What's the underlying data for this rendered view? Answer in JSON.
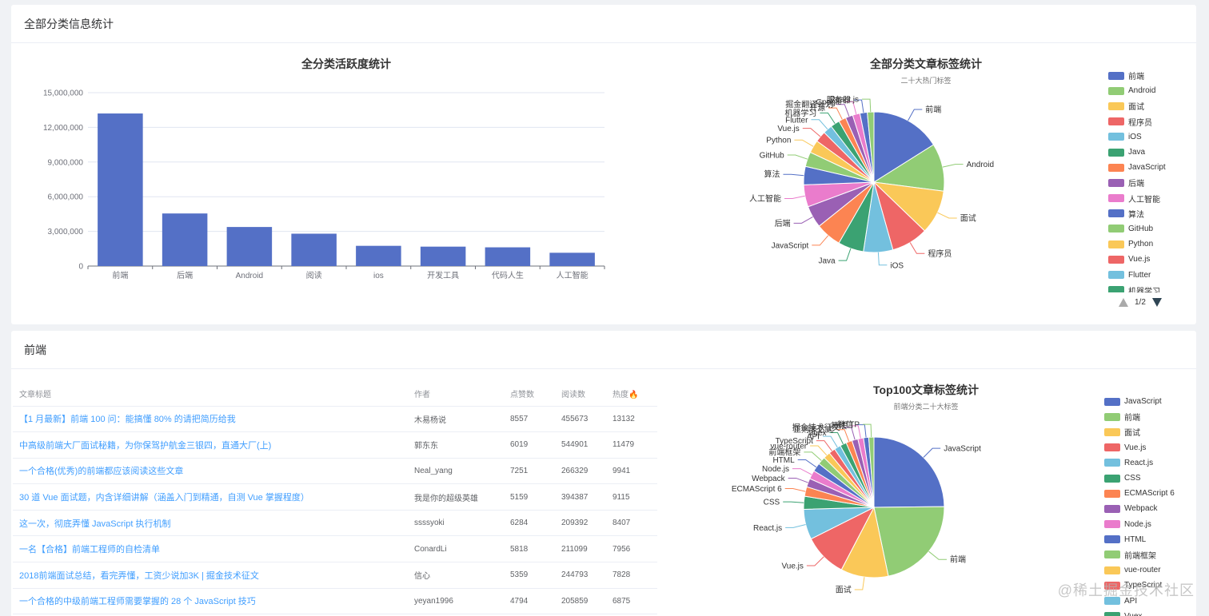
{
  "section1": {
    "title": "全部分类信息统计"
  },
  "section2": {
    "title": "前端"
  },
  "bar_chart": {
    "title": "全分类活跃度统计"
  },
  "pie1": {
    "title": "全部分类文章标签统计",
    "subtitle": "二十大热门标签",
    "legend_page": "1/2",
    "legend": [
      "前端",
      "Android",
      "面试",
      "程序员",
      "iOS",
      "Java",
      "JavaScript",
      "后端",
      "人工智能",
      "算法",
      "GitHub",
      "Python",
      "Vue.js",
      "Flutter",
      "机器学习"
    ]
  },
  "pie2": {
    "title": "Top100文章标签统计",
    "subtitle": "前端分类二十大标签",
    "legend": [
      "JavaScript",
      "前端",
      "面试",
      "Vue.js",
      "React.js",
      "CSS",
      "ECMAScript 6",
      "Webpack",
      "Node.js",
      "HTML",
      "前端框架",
      "vue-router",
      "TypeScript",
      "API",
      "Vuex"
    ]
  },
  "table": {
    "headers": [
      "文章标题",
      "作者",
      "点赞数",
      "阅读数",
      "热度🔥"
    ],
    "rows": [
      [
        "【1 月最新】前端 100 问：能搞懂 80% 的请把简历给我",
        "木易杨说",
        "8557",
        "455673",
        "13132"
      ],
      [
        "中高级前端大厂面试秘籍，为你保驾护航金三银四，直通大厂(上)",
        "郭东东",
        "6019",
        "544901",
        "11479"
      ],
      [
        "一个合格(优秀)的前端都应该阅读这些文章",
        "Neal_yang",
        "7251",
        "266329",
        "9941"
      ],
      [
        "30 道 Vue 面试题，内含详细讲解（涵盖入门到精通，自测 Vue 掌握程度）",
        "我是你的超级英雄",
        "5159",
        "394387",
        "9115"
      ],
      [
        "这一次，彻底弄懂 JavaScript 执行机制",
        "ssssyoki",
        "6284",
        "209392",
        "8407"
      ],
      [
        "一名【合格】前端工程师的自检清单",
        "ConardLi",
        "5818",
        "211099",
        "7956"
      ],
      [
        "2018前端面试总结，看完弄懂，工资少说加3K | 掘金技术征文",
        "信心",
        "5359",
        "244793",
        "7828"
      ],
      [
        "一个合格的中级前端工程师需要掌握的 28 个 JavaScript 技巧",
        "yeyan1996",
        "4794",
        "205859",
        "6875"
      ]
    ]
  },
  "watermark": "@稀土掘金技术社区",
  "palette": [
    "#5470c6",
    "#91cc75",
    "#fac858",
    "#ee6666",
    "#73c0de",
    "#3ba272",
    "#fc8452",
    "#9a60b4",
    "#ea7ccc"
  ],
  "chart_data": [
    {
      "type": "bar",
      "title": "全分类活跃度统计",
      "categories": [
        "前端",
        "后端",
        "Android",
        "阅读",
        "ios",
        "开发工具",
        "代码人生",
        "人工智能"
      ],
      "values": [
        13200000,
        4550000,
        3380000,
        2800000,
        1750000,
        1680000,
        1620000,
        1150000
      ],
      "ylim": [
        0,
        15000000
      ],
      "yticks": [
        "0",
        "3,000,000",
        "6,000,000",
        "9,000,000",
        "12,000,000",
        "15,000,000"
      ],
      "color": "#5470c6",
      "grid": true
    },
    {
      "type": "pie",
      "title": "全部分类文章标签统计",
      "subtitle": "二十大热门标签",
      "labels": [
        "前端",
        "Android",
        "面试",
        "程序员",
        "iOS",
        "Java",
        "JavaScript",
        "后端",
        "人工智能",
        "算法",
        "GitHub",
        "Python",
        "Vue.js",
        "Flutter",
        "机器学习",
        "开源",
        "掘金翻译计划",
        "Google",
        "服务器",
        "React.js"
      ],
      "values": [
        19,
        13,
        12,
        10,
        8,
        7,
        7,
        6,
        6,
        5,
        4,
        3.5,
        3,
        2.5,
        2.5,
        2,
        2,
        2,
        2,
        1.8
      ],
      "legend_position": "right"
    },
    {
      "type": "pie",
      "title": "Top100文章标签统计",
      "subtitle": "前端分类二十大标签",
      "labels": [
        "JavaScript",
        "前端",
        "面试",
        "Vue.js",
        "React.js",
        "CSS",
        "ECMAScript 6",
        "Webpack",
        "Node.js",
        "HTML",
        "前端框架",
        "vue-router",
        "TypeScript",
        "API",
        "Vuex",
        "正则表达式",
        "掘金技术征文",
        "算法",
        "微信",
        "HTTP"
      ],
      "values": [
        25,
        22,
        11,
        10,
        7,
        3,
        2.2,
        2,
        2,
        2,
        1.8,
        1.6,
        1.5,
        1.5,
        1.5,
        1.4,
        1.4,
        1.3,
        1.2,
        1.2
      ],
      "legend_position": "right"
    }
  ]
}
